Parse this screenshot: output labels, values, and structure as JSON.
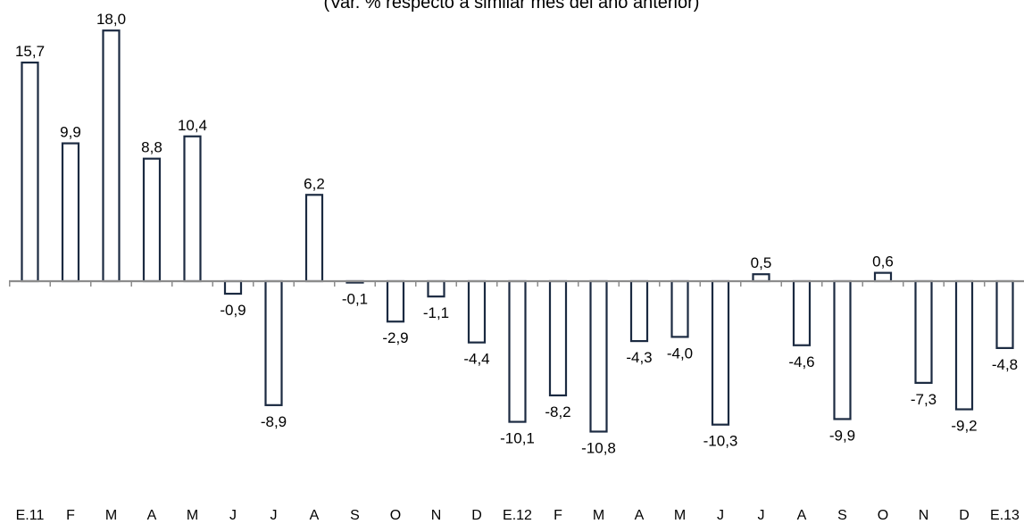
{
  "chart_data": {
    "type": "bar",
    "subtitle": "(Var. % respecto a similar mes del año anterior)",
    "categories": [
      "E.11",
      "F",
      "M",
      "A",
      "M",
      "J",
      "J",
      "A",
      "S",
      "O",
      "N",
      "D",
      "E.12",
      "F",
      "M",
      "A",
      "M",
      "J",
      "J",
      "A",
      "S",
      "O",
      "N",
      "D",
      "E.13"
    ],
    "values": [
      15.7,
      9.9,
      18.0,
      8.8,
      10.4,
      -0.9,
      -8.9,
      6.2,
      -0.1,
      -2.9,
      -1.1,
      -4.4,
      -10.1,
      -8.2,
      -10.8,
      -4.3,
      -4.0,
      -10.3,
      0.5,
      -4.6,
      -9.9,
      0.6,
      -7.3,
      -9.2,
      -4.8
    ],
    "value_labels": [
      "15,7",
      "9,9",
      "18,0",
      "8,8",
      "10,4",
      "-0,9",
      "-8,9",
      "6,2",
      "-0,1",
      "-2,9",
      "-1,1",
      "-4,4",
      "-10,1",
      "-8,2",
      "-10,8",
      "-4,3",
      "-4,0",
      "-10,3",
      "0,5",
      "-4,6",
      "-9,9",
      "0,6",
      "-7,3",
      "-9,2",
      "-4,8"
    ],
    "colors": {
      "bar_stroke": "#1b2a41",
      "bar_fill": "#ffffff",
      "axis": "#8c8c8c"
    }
  }
}
